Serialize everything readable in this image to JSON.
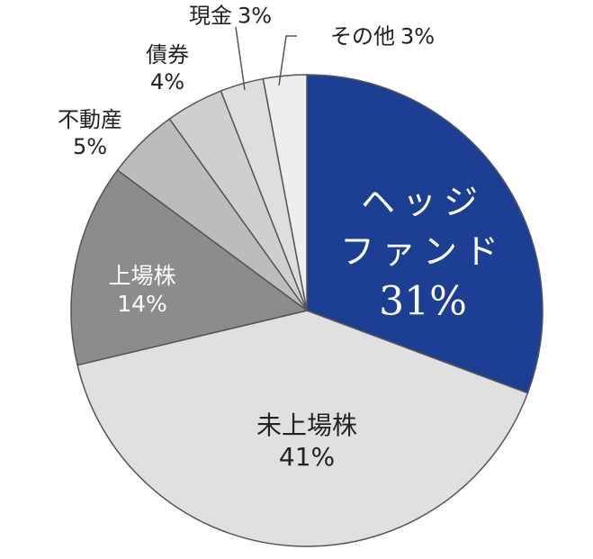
{
  "chart_data": {
    "type": "pie",
    "categories": [
      "ヘッジ\nファンド",
      "未上場株",
      "上場株",
      "不動産",
      "債券",
      "現金",
      "その他"
    ],
    "values": [
      31,
      41,
      14,
      5,
      4,
      3,
      3
    ],
    "value_labels": [
      "31%",
      "41%",
      "14%",
      "5%",
      "4%",
      "3%",
      "3%"
    ],
    "colors": [
      "#1c3f94",
      "#e0e0e0",
      "#8c8c8c",
      "#bcbcbc",
      "#cfcfcf",
      "#dedede",
      "#eeeeee"
    ]
  }
}
